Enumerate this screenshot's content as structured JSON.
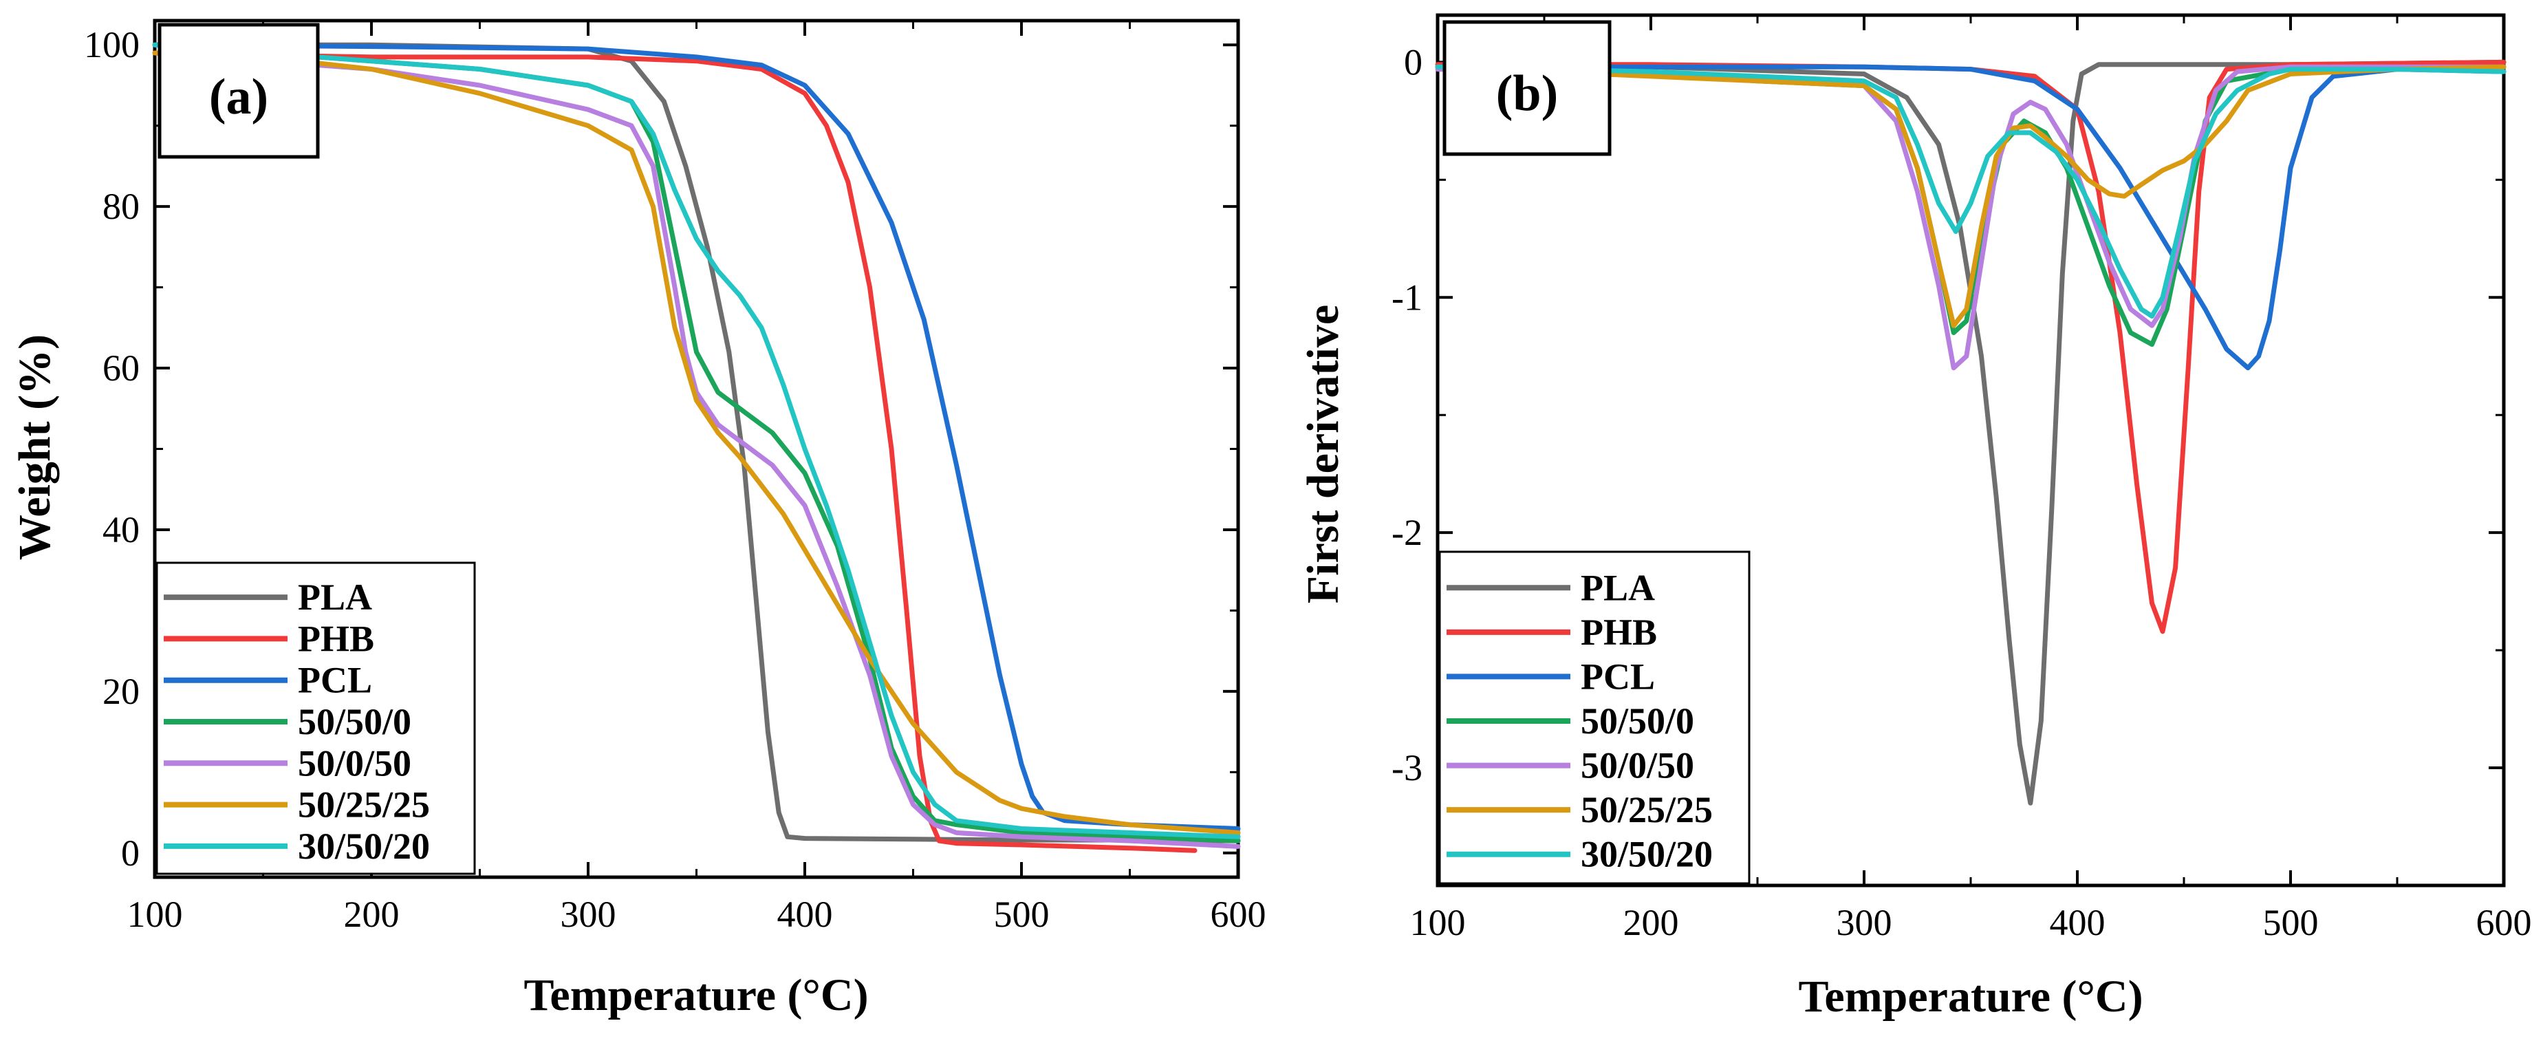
{
  "figure": {
    "colors": {
      "PLA": "#6e6e6e",
      "PHB": "#f03a3a",
      "PCL": "#1f6fd1",
      "50/50/0": "#1aa55a",
      "50/0/50": "#b77fe0",
      "50/25/25": "#d99a12",
      "30/50/20": "#22c4c4"
    }
  },
  "chart_data": [
    {
      "panel": "(a)",
      "type": "line",
      "title": "",
      "xlabel": "Temperature (°C)",
      "ylabel": "Weight (%)",
      "xlim": [
        100,
        600
      ],
      "ylim": [
        -3,
        103
      ],
      "xticks": [
        "100",
        "200",
        "300",
        "400",
        "500",
        "600"
      ],
      "yticks": [
        "0",
        "20",
        "40",
        "60",
        "80",
        "100"
      ],
      "xtick_values": [
        100,
        200,
        300,
        400,
        500,
        600
      ],
      "ytick_values": [
        0,
        20,
        40,
        60,
        80,
        100
      ],
      "legend": [
        "PLA",
        "PHB",
        "PCL",
        "50/50/0",
        "50/0/50",
        "50/25/25",
        "30/50/20"
      ],
      "legend_position": "bottom-left",
      "series": [
        {
          "name": "PLA",
          "x": [
            100,
            200,
            300,
            320,
            335,
            345,
            355,
            365,
            372,
            378,
            383,
            388,
            392,
            400,
            450,
            500,
            550,
            600
          ],
          "y": [
            100,
            100,
            99.5,
            98,
            93,
            85,
            75,
            62,
            48,
            30,
            15,
            5,
            2,
            1.8,
            1.7,
            1.6,
            1.6,
            1.5
          ]
        },
        {
          "name": "PHB",
          "x": [
            100,
            200,
            300,
            350,
            380,
            400,
            410,
            420,
            430,
            440,
            447,
            453,
            458,
            462,
            470,
            500,
            550,
            580
          ],
          "y": [
            99,
            98.5,
            98.5,
            98,
            97,
            94,
            90,
            83,
            70,
            50,
            30,
            12,
            4,
            1.5,
            1.2,
            1,
            0.6,
            0.3
          ]
        },
        {
          "name": "PCL",
          "x": [
            100,
            200,
            300,
            350,
            380,
            400,
            420,
            440,
            455,
            470,
            480,
            490,
            500,
            505,
            510,
            520,
            550,
            600
          ],
          "y": [
            100,
            99.8,
            99.5,
            98.5,
            97.5,
            95,
            89,
            78,
            66,
            48,
            35,
            22,
            11,
            7,
            5,
            4,
            3.5,
            3
          ]
        },
        {
          "name": "50/50/0",
          "x": [
            100,
            150,
            200,
            250,
            300,
            320,
            330,
            340,
            350,
            360,
            370,
            385,
            400,
            415,
            430,
            440,
            450,
            460,
            470,
            500,
            550,
            600
          ],
          "y": [
            100,
            99,
            98,
            97,
            95,
            93,
            88,
            75,
            62,
            57,
            55,
            52,
            47,
            38,
            24,
            13,
            7,
            4,
            3.5,
            2.5,
            2,
            1.5
          ]
        },
        {
          "name": "50/0/50",
          "x": [
            100,
            150,
            200,
            250,
            300,
            320,
            330,
            340,
            345,
            350,
            360,
            370,
            385,
            400,
            415,
            430,
            440,
            450,
            460,
            470,
            500,
            550,
            600
          ],
          "y": [
            99,
            98,
            97,
            95,
            92,
            90,
            85,
            70,
            62,
            57,
            53,
            51,
            48,
            43,
            33,
            22,
            12,
            6,
            3.5,
            2.5,
            2,
            1.5,
            0.8
          ]
        },
        {
          "name": "50/25/25",
          "x": [
            100,
            150,
            200,
            250,
            300,
            320,
            330,
            340,
            350,
            360,
            370,
            390,
            410,
            430,
            450,
            470,
            490,
            500,
            520,
            550,
            600
          ],
          "y": [
            99,
            98.5,
            97,
            94,
            90,
            87,
            80,
            65,
            56,
            52,
            49,
            42,
            33,
            24,
            16,
            10,
            6.5,
            5.5,
            4.5,
            3.5,
            2.5
          ]
        },
        {
          "name": "30/50/20",
          "x": [
            100,
            150,
            200,
            250,
            300,
            320,
            330,
            340,
            350,
            360,
            370,
            380,
            390,
            400,
            410,
            420,
            430,
            440,
            450,
            460,
            470,
            500,
            550,
            600
          ],
          "y": [
            100,
            99,
            98,
            97,
            95,
            93,
            89,
            82,
            76,
            72,
            69,
            65,
            58,
            50,
            43,
            35,
            26,
            17,
            10,
            6,
            4,
            3,
            2.5,
            2
          ]
        }
      ]
    },
    {
      "panel": "(b)",
      "type": "line",
      "title": "",
      "xlabel": "Temperature (°C)",
      "ylabel": "First derivative",
      "xlim": [
        100,
        600
      ],
      "ylim": [
        -3.5,
        0.2
      ],
      "xticks": [
        "100",
        "200",
        "300",
        "400",
        "500",
        "600"
      ],
      "yticks": [
        "0",
        "-1",
        "-2",
        "-3"
      ],
      "xtick_values": [
        100,
        200,
        300,
        400,
        500,
        600
      ],
      "ytick_values": [
        0,
        -1,
        -2,
        -3
      ],
      "legend": [
        "PLA",
        "PHB",
        "PCL",
        "50/50/0",
        "50/0/50",
        "50/25/25",
        "30/50/20"
      ],
      "legend_position": "bottom-left",
      "series": [
        {
          "name": "PLA",
          "x": [
            100,
            200,
            300,
            320,
            335,
            345,
            355,
            362,
            368,
            373,
            378,
            383,
            388,
            393,
            398,
            402,
            410,
            450,
            500,
            600
          ],
          "y": [
            -0.02,
            -0.02,
            -0.05,
            -0.15,
            -0.35,
            -0.7,
            -1.25,
            -1.85,
            -2.45,
            -2.9,
            -3.15,
            -2.8,
            -1.9,
            -0.9,
            -0.25,
            -0.05,
            -0.01,
            -0.01,
            -0.01,
            0
          ]
        },
        {
          "name": "PHB",
          "x": [
            100,
            200,
            300,
            350,
            380,
            400,
            410,
            420,
            428,
            435,
            440,
            446,
            452,
            457,
            462,
            470,
            500,
            600
          ],
          "y": [
            -0.01,
            -0.01,
            -0.02,
            -0.03,
            -0.06,
            -0.2,
            -0.55,
            -1.15,
            -1.8,
            -2.3,
            -2.42,
            -2.15,
            -1.3,
            -0.55,
            -0.15,
            -0.03,
            -0.01,
            0
          ]
        },
        {
          "name": "PCL",
          "x": [
            100,
            200,
            300,
            350,
            380,
            400,
            420,
            440,
            460,
            470,
            480,
            485,
            490,
            495,
            500,
            510,
            520,
            550,
            600
          ],
          "y": [
            -0.02,
            -0.02,
            -0.02,
            -0.03,
            -0.08,
            -0.2,
            -0.45,
            -0.75,
            -1.05,
            -1.22,
            -1.3,
            -1.25,
            -1.1,
            -0.8,
            -0.45,
            -0.15,
            -0.06,
            -0.03,
            -0.04
          ]
        },
        {
          "name": "50/50/0",
          "x": [
            100,
            200,
            250,
            300,
            315,
            325,
            335,
            342,
            348,
            355,
            365,
            375,
            385,
            395,
            405,
            415,
            425,
            435,
            442,
            450,
            460,
            470,
            500,
            600
          ],
          "y": [
            -0.02,
            -0.05,
            -0.08,
            -0.1,
            -0.2,
            -0.45,
            -0.85,
            -1.15,
            -1.1,
            -0.75,
            -0.35,
            -0.25,
            -0.3,
            -0.45,
            -0.7,
            -0.95,
            -1.15,
            -1.2,
            -1.05,
            -0.7,
            -0.25,
            -0.08,
            -0.03,
            -0.02
          ]
        },
        {
          "name": "50/0/50",
          "x": [
            100,
            200,
            250,
            300,
            315,
            325,
            335,
            342,
            348,
            355,
            362,
            370,
            378,
            385,
            395,
            405,
            415,
            425,
            435,
            440,
            448,
            455,
            465,
            475,
            500,
            600
          ],
          "y": [
            -0.03,
            -0.05,
            -0.07,
            -0.1,
            -0.25,
            -0.55,
            -0.95,
            -1.3,
            -1.25,
            -0.85,
            -0.45,
            -0.22,
            -0.17,
            -0.2,
            -0.35,
            -0.6,
            -0.85,
            -1.05,
            -1.12,
            -1.05,
            -0.75,
            -0.4,
            -0.12,
            -0.04,
            -0.02,
            -0.02
          ]
        },
        {
          "name": "50/25/25",
          "x": [
            100,
            200,
            250,
            300,
            315,
            325,
            335,
            342,
            348,
            355,
            362,
            370,
            378,
            385,
            395,
            405,
            415,
            422,
            430,
            440,
            450,
            460,
            470,
            480,
            500,
            550,
            600
          ],
          "y": [
            -0.02,
            -0.06,
            -0.08,
            -0.1,
            -0.2,
            -0.45,
            -0.85,
            -1.12,
            -1.05,
            -0.7,
            -0.4,
            -0.28,
            -0.27,
            -0.32,
            -0.4,
            -0.5,
            -0.56,
            -0.57,
            -0.52,
            -0.46,
            -0.42,
            -0.35,
            -0.25,
            -0.12,
            -0.05,
            -0.03,
            -0.02
          ]
        },
        {
          "name": "30/50/20",
          "x": [
            100,
            200,
            250,
            300,
            315,
            325,
            335,
            343,
            350,
            358,
            368,
            378,
            390,
            400,
            410,
            420,
            430,
            435,
            440,
            448,
            455,
            465,
            475,
            490,
            500,
            550,
            600
          ],
          "y": [
            -0.02,
            -0.04,
            -0.06,
            -0.08,
            -0.15,
            -0.35,
            -0.6,
            -0.72,
            -0.6,
            -0.4,
            -0.3,
            -0.3,
            -0.38,
            -0.5,
            -0.68,
            -0.88,
            -1.05,
            -1.08,
            -1.0,
            -0.7,
            -0.42,
            -0.22,
            -0.12,
            -0.05,
            -0.03,
            -0.03,
            -0.04
          ]
        }
      ]
    }
  ]
}
